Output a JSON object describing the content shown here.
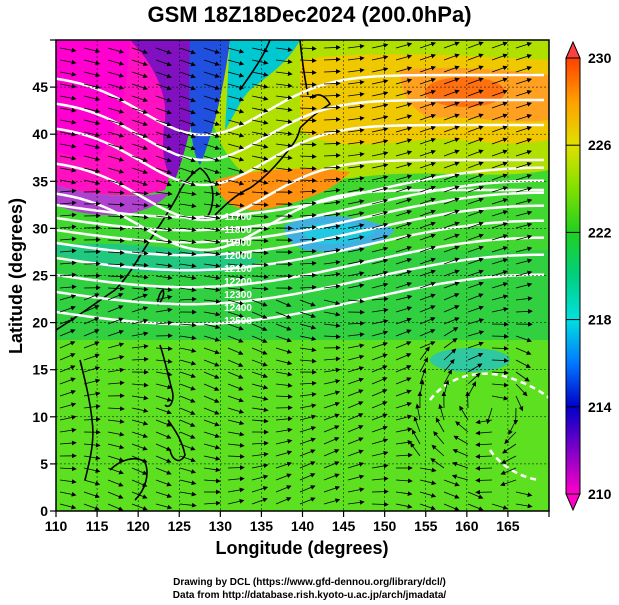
{
  "title": "GSM 18Z18Dec2024 (200.0hPa)",
  "xaxis": {
    "label": "Longitude (degrees)",
    "range": [
      110,
      170
    ],
    "ticks": [
      110,
      115,
      120,
      125,
      130,
      135,
      140,
      145,
      150,
      155,
      160,
      165
    ]
  },
  "yaxis": {
    "label": "Latitude  (degrees)",
    "range": [
      0,
      50
    ],
    "ticks": [
      0,
      5,
      10,
      15,
      20,
      25,
      30,
      35,
      40,
      45
    ]
  },
  "colorbar": {
    "range": [
      210,
      230
    ],
    "ticks": [
      210,
      214,
      218,
      222,
      226,
      230
    ],
    "colors": [
      "#ff00c8",
      "#8000c8",
      "#0000c8",
      "#0078ff",
      "#00e0e0",
      "#00d080",
      "#20d020",
      "#80e000",
      "#e0e000",
      "#ffa000",
      "#ff4000"
    ]
  },
  "contour_labels": [
    "11700",
    "11800",
    "11900",
    "12000",
    "12100",
    "12200",
    "12300",
    "12400",
    "12500"
  ],
  "credits": {
    "line1": "Drawing by DCL (https://www.gfd-dennou.org/library/dcl/)",
    "line2": "Data from http://database.rish.kyoto-u.ac.jp/arch/jmadata/"
  }
}
